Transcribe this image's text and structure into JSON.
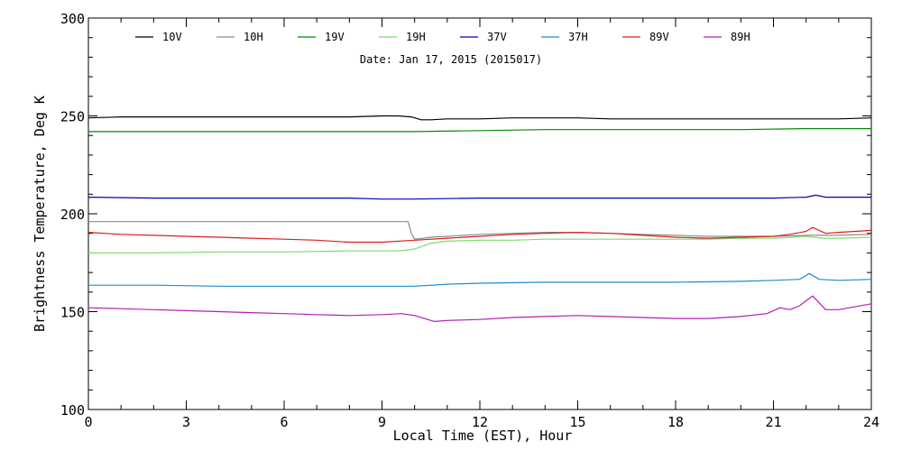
{
  "chart_data": {
    "type": "line",
    "title": "",
    "subtitle": "Date: Jan 17, 2015 (2015017)",
    "xlabel": "Local Time (EST), Hour",
    "ylabel": "Brightness Temperature, Deg K",
    "xlim": [
      0,
      24
    ],
    "ylim": [
      100,
      300
    ],
    "xticks": [
      0,
      3,
      6,
      9,
      12,
      15,
      18,
      21,
      24
    ],
    "yticks": [
      100,
      150,
      200,
      250,
      300
    ],
    "grid": false,
    "legend_position": "top",
    "series": [
      {
        "name": "10V",
        "color": "#000000",
        "x": [
          0,
          1,
          2,
          3,
          4,
          5,
          6,
          7,
          8,
          9,
          9.5,
          9.9,
          10.2,
          10.5,
          11,
          12,
          13,
          14,
          15,
          16,
          17,
          18,
          19,
          20,
          21,
          22,
          23,
          24
        ],
        "y": [
          249,
          249.5,
          249.5,
          249.5,
          249.5,
          249.5,
          249.5,
          249.5,
          249.5,
          250,
          250,
          249.5,
          248,
          248,
          248.5,
          248.5,
          249,
          249,
          249,
          248.5,
          248.5,
          248.5,
          248.5,
          248.5,
          248.5,
          248.5,
          248.5,
          249
        ]
      },
      {
        "name": "10H",
        "color": "#8c8c8c",
        "x": [
          0,
          1,
          2,
          3,
          4,
          5,
          6,
          7,
          8,
          9,
          9.5,
          9.8,
          9.9,
          10,
          10.5,
          11,
          11.5,
          12,
          13,
          14,
          15,
          16,
          17,
          18,
          19,
          20,
          21,
          22,
          23,
          24
        ],
        "y": [
          196,
          196,
          196,
          196,
          196,
          196,
          196,
          196,
          196,
          196,
          196,
          196,
          190,
          187,
          188,
          188.5,
          189,
          189.5,
          190,
          190.5,
          190.5,
          190,
          189.5,
          189,
          188.5,
          188.5,
          188.5,
          189,
          189,
          189.5
        ]
      },
      {
        "name": "19V",
        "color": "#008c00",
        "x": [
          0,
          2,
          4,
          6,
          8,
          10,
          12,
          14,
          16,
          18,
          20,
          22,
          24
        ],
        "y": [
          242,
          242,
          242,
          242,
          242,
          242,
          242.5,
          243,
          243,
          243,
          243,
          243.5,
          243.5
        ]
      },
      {
        "name": "19H",
        "color": "#7ddc6e",
        "x": [
          0,
          2,
          4,
          6,
          8,
          9.5,
          10,
          10.5,
          11,
          12,
          13,
          14,
          15,
          16,
          17,
          18,
          19,
          20,
          21,
          22,
          22.5,
          23,
          24
        ],
        "y": [
          180,
          180,
          180.5,
          180.5,
          181,
          181,
          182,
          185,
          186,
          186.5,
          186.5,
          187,
          187,
          187,
          187,
          187,
          187,
          187.5,
          187.5,
          188.5,
          187.5,
          187.5,
          188
        ]
      },
      {
        "name": "37V",
        "color": "#0000b4",
        "x": [
          0,
          2,
          4,
          6,
          8,
          9,
          10,
          12,
          14,
          16,
          18,
          20,
          21,
          22,
          22.3,
          22.6,
          23,
          24
        ],
        "y": [
          208.5,
          208,
          208,
          208,
          208,
          207.5,
          207.5,
          208,
          208,
          208,
          208,
          208,
          208,
          208.5,
          209.5,
          208.5,
          208.5,
          208.5
        ]
      },
      {
        "name": "37H",
        "color": "#1e8cd2",
        "x": [
          0,
          2,
          4,
          6,
          8,
          10,
          11,
          12,
          14,
          16,
          18,
          20,
          21,
          21.8,
          22.1,
          22.4,
          23,
          24
        ],
        "y": [
          163.5,
          163.5,
          163,
          163,
          163,
          163,
          164,
          164.5,
          165,
          165,
          165,
          165.5,
          166,
          166.5,
          169.5,
          166.5,
          166,
          166.5
        ]
      },
      {
        "name": "89V",
        "color": "#dc1e1e",
        "x": [
          0,
          1,
          2,
          3,
          4,
          5,
          6,
          7,
          8,
          9,
          10,
          11,
          12,
          13,
          14,
          15,
          16,
          17,
          18,
          19,
          20,
          21,
          21.5,
          22,
          22.2,
          22.6,
          23,
          24
        ],
        "y": [
          190.5,
          189.5,
          189,
          188.5,
          188,
          187.5,
          187,
          186.5,
          185.5,
          185.5,
          186.5,
          187.5,
          188.5,
          189.5,
          190,
          190.5,
          190,
          189,
          188,
          187.5,
          188,
          188.5,
          189.5,
          191,
          193,
          190,
          190.5,
          191.5
        ]
      },
      {
        "name": "89H",
        "color": "#b41eb4",
        "x": [
          0,
          1,
          2,
          3,
          4,
          5,
          6,
          7,
          8,
          9,
          9.6,
          10,
          10.3,
          10.6,
          11,
          12,
          13,
          14,
          15,
          16,
          17,
          18,
          19,
          20,
          20.8,
          21.2,
          21.5,
          21.8,
          22.2,
          22.6,
          23,
          24
        ],
        "y": [
          152,
          151.5,
          151,
          150.5,
          150,
          149.5,
          149,
          148.5,
          148,
          148.5,
          149,
          148,
          146.5,
          145,
          145.5,
          146,
          147,
          147.5,
          148,
          147.5,
          147,
          146.5,
          146.5,
          147.5,
          149,
          152,
          151,
          153,
          158,
          151,
          151,
          154
        ]
      }
    ]
  }
}
